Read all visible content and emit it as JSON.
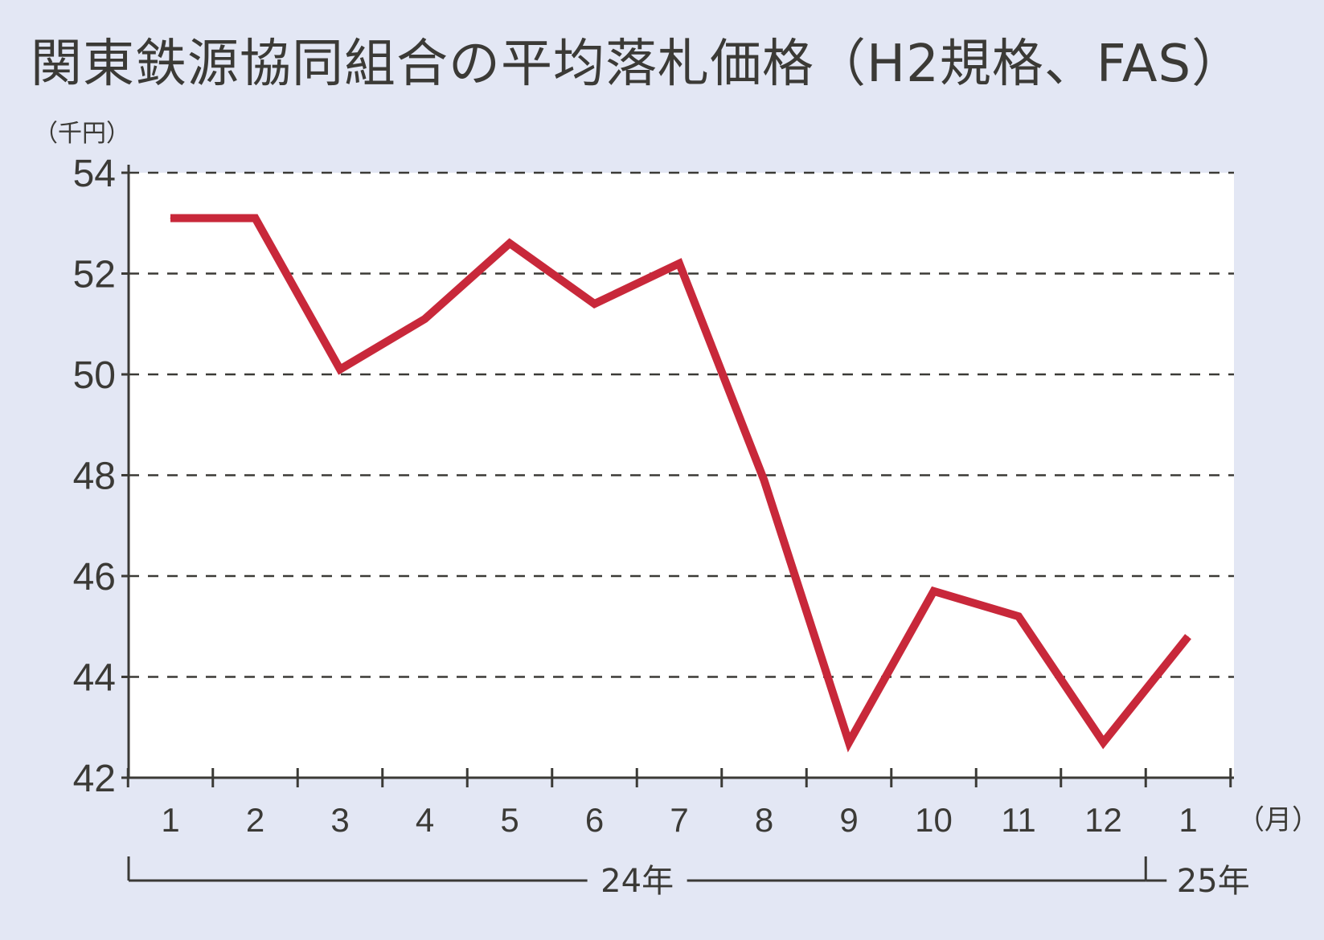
{
  "chart_data": {
    "type": "line",
    "title": "関東鉄源協同組合の平均落札価格（H2規格、FAS）",
    "ylabel": "（千円）",
    "xlabel": "（月）",
    "ylim": [
      42,
      54
    ],
    "yticks": [
      "54",
      "52",
      "50",
      "48",
      "46",
      "44",
      "42"
    ],
    "grid": true,
    "categories": [
      "1",
      "2",
      "3",
      "4",
      "5",
      "6",
      "7",
      "8",
      "9",
      "10",
      "11",
      "12",
      "1"
    ],
    "years": [
      {
        "label": "24年",
        "from": 0,
        "to": 11
      },
      {
        "label": "25年",
        "from": 12,
        "to": 12
      }
    ],
    "series": [
      {
        "color": "#c8283a",
        "values": [
          53.1,
          53.1,
          50.1,
          51.1,
          52.6,
          51.4,
          52.2,
          47.9,
          42.7,
          45.7,
          45.2,
          42.7,
          44.8
        ]
      }
    ]
  }
}
